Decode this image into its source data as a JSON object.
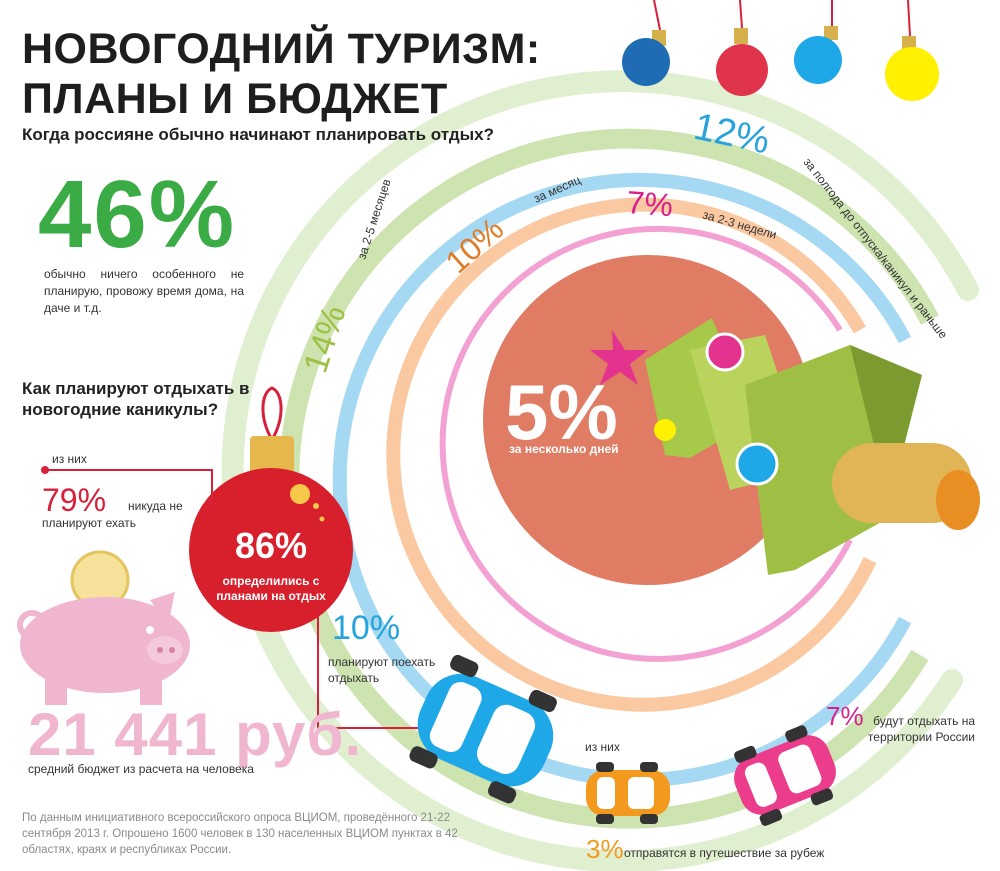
{
  "title": {
    "line1": "НОВОГОДНИЙ ТУРИЗМ:",
    "line2": "ПЛАНЫ И БЮДЖЕТ"
  },
  "planning": {
    "question": "Когда россияне обычно начинают планировать отдых?",
    "main_value": "46%",
    "main_text": "обычно ничего особенного не планирую, провожу время дома, на даче и т.д.",
    "rings": [
      {
        "value": "12%",
        "label": "за полгода до отпуска/каникул и раньше",
        "color": "#83c9ec"
      },
      {
        "value": "14%",
        "label": "за 2-5 месяцев",
        "color": "#b9d888"
      },
      {
        "value": "10%",
        "label": "за месяц",
        "color": "#fbc79c"
      },
      {
        "value": "7%",
        "label": "за 2-3 недели",
        "color": "#f09ccf"
      },
      {
        "value": "5%",
        "label": "за несколько дней",
        "color": "#e07b64"
      }
    ]
  },
  "holidays": {
    "question": "Как планируют отдыхать в новогодние каникулы?",
    "decided_value": "86%",
    "decided_text": "определились с планами на отдых",
    "of_them_1": "из них",
    "stay_value": "79%",
    "stay_text_a": "никуда не",
    "stay_text_b": "планируют ехать",
    "travel_value": "10%",
    "travel_text": "планируют поехать отдыхать",
    "of_them_2": "из них",
    "russia_value": "7%",
    "russia_text": "будут отдыхать на территории России",
    "abroad_value": "3%",
    "abroad_text": "отправятся в путешествие за рубеж"
  },
  "budget": {
    "value": "21 441 руб.",
    "text": "средний бюджет из расчета на человека"
  },
  "source": "По данным инициативного всероссийского опроса ВЦИОМ, проведённого 21-22 сентября 2013 г. Опрошено 1600 человек в 130 населенных ВЦИОМ пунктах в 42 областях, краях и республиках России.",
  "colors": {
    "green": "#3aab45",
    "red": "#d8203a",
    "blue": "#27a4dc",
    "pink": "#f0b5cf",
    "orange": "#f39a1e",
    "magenta": "#d8208f"
  }
}
